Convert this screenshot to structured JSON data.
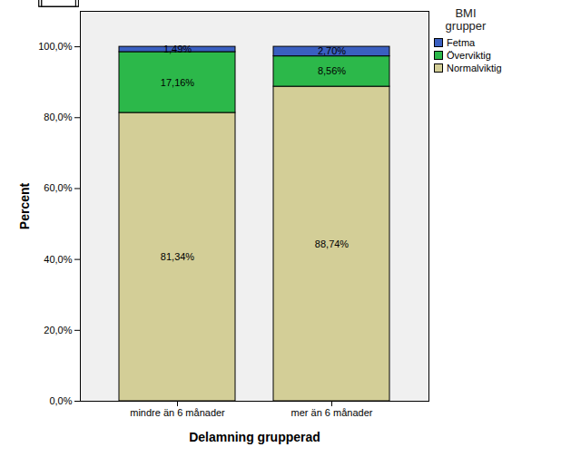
{
  "chart_data": {
    "type": "bar",
    "stacked": true,
    "data_labels": true,
    "grid": false,
    "legend": "right",
    "legend_title": "BMI grupper",
    "x_label": "Delamning grupperad",
    "y_label": "Percent",
    "categories": [
      "mindre än 6 månader",
      "mer än 6 månader"
    ],
    "series": [
      {
        "name": "Normalviktig",
        "color": "#d3ce97",
        "values": [
          81.34,
          88.74
        ],
        "value_labels": [
          "81,34%",
          "88,74%"
        ]
      },
      {
        "name": "Överviktig",
        "color": "#2cb84a",
        "values": [
          17.16,
          8.56
        ],
        "value_labels": [
          "17,16%",
          "8,56%"
        ]
      },
      {
        "name": "Fetma",
        "color": "#3a5fc0",
        "values": [
          1.49,
          2.7
        ],
        "value_labels": [
          "1,49%",
          "2,70%"
        ]
      }
    ],
    "ylim": [
      0,
      110
    ],
    "yticks": [
      {
        "value": 0,
        "label": "0,0%"
      },
      {
        "value": 20,
        "label": "20,0%"
      },
      {
        "value": 40,
        "label": "40,0%"
      },
      {
        "value": 60,
        "label": "60,0%"
      },
      {
        "value": 80,
        "label": "80,0%"
      },
      {
        "value": 100,
        "label": "100,0%"
      }
    ]
  }
}
